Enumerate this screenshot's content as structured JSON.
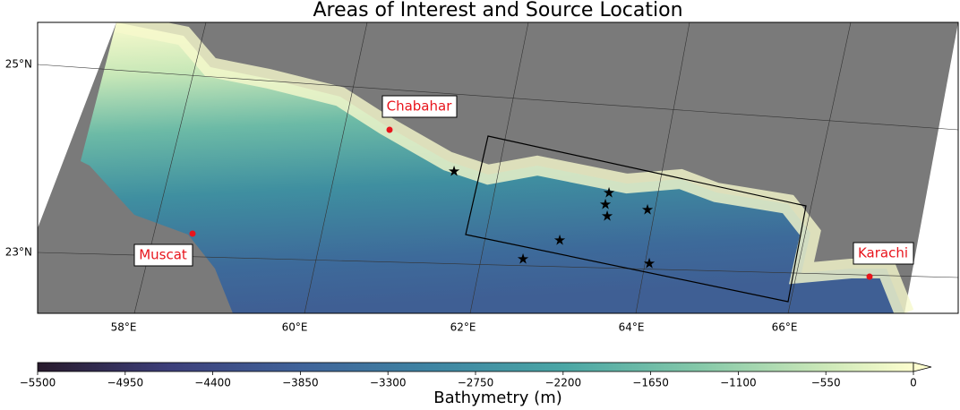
{
  "title": "Areas of Interest and Source Location",
  "map": {
    "lat_labels": [
      "25°N",
      "23°N"
    ],
    "lon_labels": [
      "58°E",
      "60°E",
      "62°E",
      "64°E",
      "66°E"
    ],
    "places": [
      "Chabahar",
      "Muscat",
      "Karachi"
    ]
  },
  "colorbar": {
    "label": "Bathymetry (m)",
    "lim": [
      -5500,
      0
    ],
    "ticks": [
      {
        "value": -5500,
        "label": "−5500"
      },
      {
        "value": -4950,
        "label": "−4950"
      },
      {
        "value": -4400,
        "label": "−4400"
      },
      {
        "value": -3850,
        "label": "−3850"
      },
      {
        "value": -3300,
        "label": "−3300"
      },
      {
        "value": -2750,
        "label": "−2750"
      },
      {
        "value": -2200,
        "label": "−2200"
      },
      {
        "value": -1650,
        "label": "−1650"
      },
      {
        "value": -1100,
        "label": "−1100"
      },
      {
        "value": -550,
        "label": "−550"
      },
      0
    ]
  }
}
